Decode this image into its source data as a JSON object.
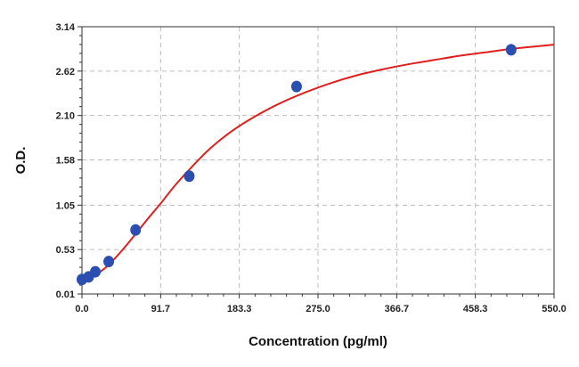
{
  "chart_data": {
    "type": "scatter",
    "title": "",
    "xlabel": "Concentration (pg/ml)",
    "ylabel": "O.D.",
    "xlim": [
      0,
      550
    ],
    "ylim": [
      0.01,
      3.14
    ],
    "x_ticks": [
      "0.0",
      "91.7",
      "183.3",
      "275.0",
      "366.7",
      "458.3",
      "550.0"
    ],
    "x_tick_values": [
      0,
      91.7,
      183.3,
      275.0,
      366.7,
      458.3,
      550.0
    ],
    "y_ticks": [
      "0.01",
      "0.53",
      "1.05",
      "1.58",
      "2.10",
      "2.62",
      "3.14"
    ],
    "y_tick_values": [
      0.01,
      0.53,
      1.05,
      1.58,
      2.1,
      2.62,
      3.14
    ],
    "grid": true,
    "points": {
      "x": [
        0,
        7.8,
        15.6,
        31.2,
        62.5,
        125,
        250,
        500
      ],
      "y": [
        0.18,
        0.21,
        0.27,
        0.39,
        0.76,
        1.39,
        2.44,
        2.87
      ]
    },
    "curve": {
      "x": [
        0,
        10,
        20,
        30,
        45,
        60,
        75,
        91.7,
        110,
        130,
        150,
        175,
        200,
        230,
        260,
        290,
        320,
        350,
        380,
        410,
        440,
        470,
        500,
        530,
        550
      ],
      "y": [
        0.14,
        0.19,
        0.26,
        0.34,
        0.5,
        0.68,
        0.87,
        1.07,
        1.3,
        1.52,
        1.72,
        1.92,
        2.08,
        2.24,
        2.37,
        2.48,
        2.57,
        2.64,
        2.7,
        2.75,
        2.8,
        2.84,
        2.88,
        2.91,
        2.93
      ]
    },
    "colors": {
      "points": "#2a4fb0",
      "curve": "#e02020",
      "grid": "#bdbdbd",
      "axis": "#333333"
    }
  }
}
